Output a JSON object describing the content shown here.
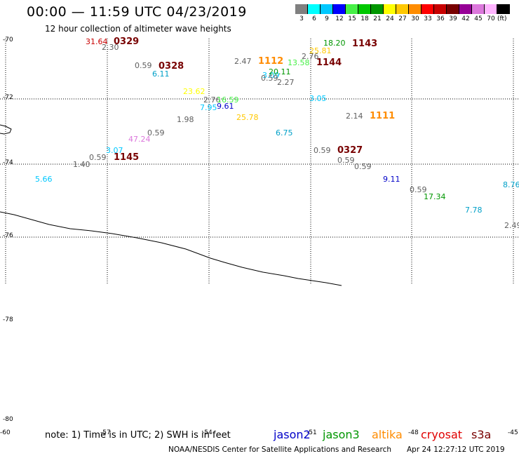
{
  "header": {
    "title": "00:00 — 11:59 UTC 04/23/2019",
    "subtitle": "12 hour collection of altimeter wave heights"
  },
  "scale": {
    "unit": "(ft)",
    "bins": [
      {
        "label": "3",
        "color": "#808080"
      },
      {
        "label": "6",
        "color": "#00ffff"
      },
      {
        "label": "9",
        "color": "#00c8ff"
      },
      {
        "label": "12",
        "color": "#0000ff"
      },
      {
        "label": "15",
        "color": "#46f046"
      },
      {
        "label": "18",
        "color": "#00c800"
      },
      {
        "label": "21",
        "color": "#009600"
      },
      {
        "label": "24",
        "color": "#ffff00"
      },
      {
        "label": "27",
        "color": "#ffc800"
      },
      {
        "label": "30",
        "color": "#ff8c00"
      },
      {
        "label": "33",
        "color": "#ff0000"
      },
      {
        "label": "36",
        "color": "#c80000"
      },
      {
        "label": "39",
        "color": "#780000"
      },
      {
        "label": "42",
        "color": "#960096"
      },
      {
        "label": "45",
        "color": "#dc78dc"
      },
      {
        "label": "70",
        "color": "#ffb4ff"
      },
      {
        "label": "",
        "color": "#000000"
      }
    ]
  },
  "axes": {
    "lat_labels": [
      "-70",
      "-72",
      "-74",
      "-76",
      "-78",
      "-80"
    ],
    "lon_labels": [
      "-60",
      "-57",
      "-54",
      "-51",
      "-48",
      "-45"
    ]
  },
  "observations": [
    {
      "text": "31.64",
      "color": "#c80000"
    },
    {
      "text": "2.30",
      "color": "#606060"
    },
    {
      "text": "0329",
      "color": "#780000"
    },
    {
      "text": "0.59",
      "color": "#606060"
    },
    {
      "text": "0328",
      "color": "#780000"
    },
    {
      "text": "6.11",
      "color": "#00a0c8"
    },
    {
      "text": "2.47",
      "color": "#606060"
    },
    {
      "text": "1112",
      "color": "#ff8c00"
    },
    {
      "text": "18.20",
      "color": "#009600"
    },
    {
      "text": "1143",
      "color": "#780000"
    },
    {
      "text": "25.81",
      "color": "#ffc800"
    },
    {
      "text": "2.76",
      "color": "#606060"
    },
    {
      "text": "13.58",
      "color": "#46f046"
    },
    {
      "text": "1144",
      "color": "#780000"
    },
    {
      "text": "3.09",
      "color": "#00c8ff"
    },
    {
      "text": "20.11",
      "color": "#009600"
    },
    {
      "text": "0.59",
      "color": "#606060"
    },
    {
      "text": "2.27",
      "color": "#606060"
    },
    {
      "text": "23.62",
      "color": "#ffff00"
    },
    {
      "text": "2.76",
      "color": "#606060"
    },
    {
      "text": "16.59",
      "color": "#46f046"
    },
    {
      "text": "7.95",
      "color": "#00c8ff"
    },
    {
      "text": "9.61",
      "color": "#0000c8"
    },
    {
      "text": "3.05",
      "color": "#00c8ff"
    },
    {
      "text": "1.98",
      "color": "#606060"
    },
    {
      "text": "25.78",
      "color": "#ffc800"
    },
    {
      "text": "2.14",
      "color": "#606060"
    },
    {
      "text": "1111",
      "color": "#ff8c00"
    },
    {
      "text": "0.59",
      "color": "#606060"
    },
    {
      "text": "47.24",
      "color": "#dc78dc"
    },
    {
      "text": "6.75",
      "color": "#00a0c8"
    },
    {
      "text": "3.07",
      "color": "#00c8ff"
    },
    {
      "text": "0.59",
      "color": "#606060"
    },
    {
      "text": "1145",
      "color": "#780000"
    },
    {
      "text": "1.40",
      "color": "#606060"
    },
    {
      "text": "0.59",
      "color": "#606060"
    },
    {
      "text": "0327",
      "color": "#780000"
    },
    {
      "text": "0.59",
      "color": "#606060"
    },
    {
      "text": "0.59",
      "color": "#606060"
    },
    {
      "text": "5.66",
      "color": "#00c8ff"
    },
    {
      "text": "9.11",
      "color": "#0000c8"
    },
    {
      "text": "0.59",
      "color": "#606060"
    },
    {
      "text": "17.34",
      "color": "#009600"
    },
    {
      "text": "8.76",
      "color": "#00a0c8"
    },
    {
      "text": "7.78",
      "color": "#00a0c8"
    },
    {
      "text": "2.49",
      "color": "#606060"
    }
  ],
  "footer": {
    "note": "note: 1) Time is in UTC; 2) SWH is in feet",
    "missions": [
      {
        "name": "jason2",
        "color": "#0000c8"
      },
      {
        "name": "jason3",
        "color": "#009600"
      },
      {
        "name": "altika",
        "color": "#ff8c00"
      },
      {
        "name": "cryosat",
        "color": "#e00000"
      },
      {
        "name": "s3a",
        "color": "#780000"
      }
    ],
    "credit": "NOAA/NESDIS Center for Satellite Applications and Research",
    "date": "Apr 24 12:27:12 UTC 2019"
  }
}
